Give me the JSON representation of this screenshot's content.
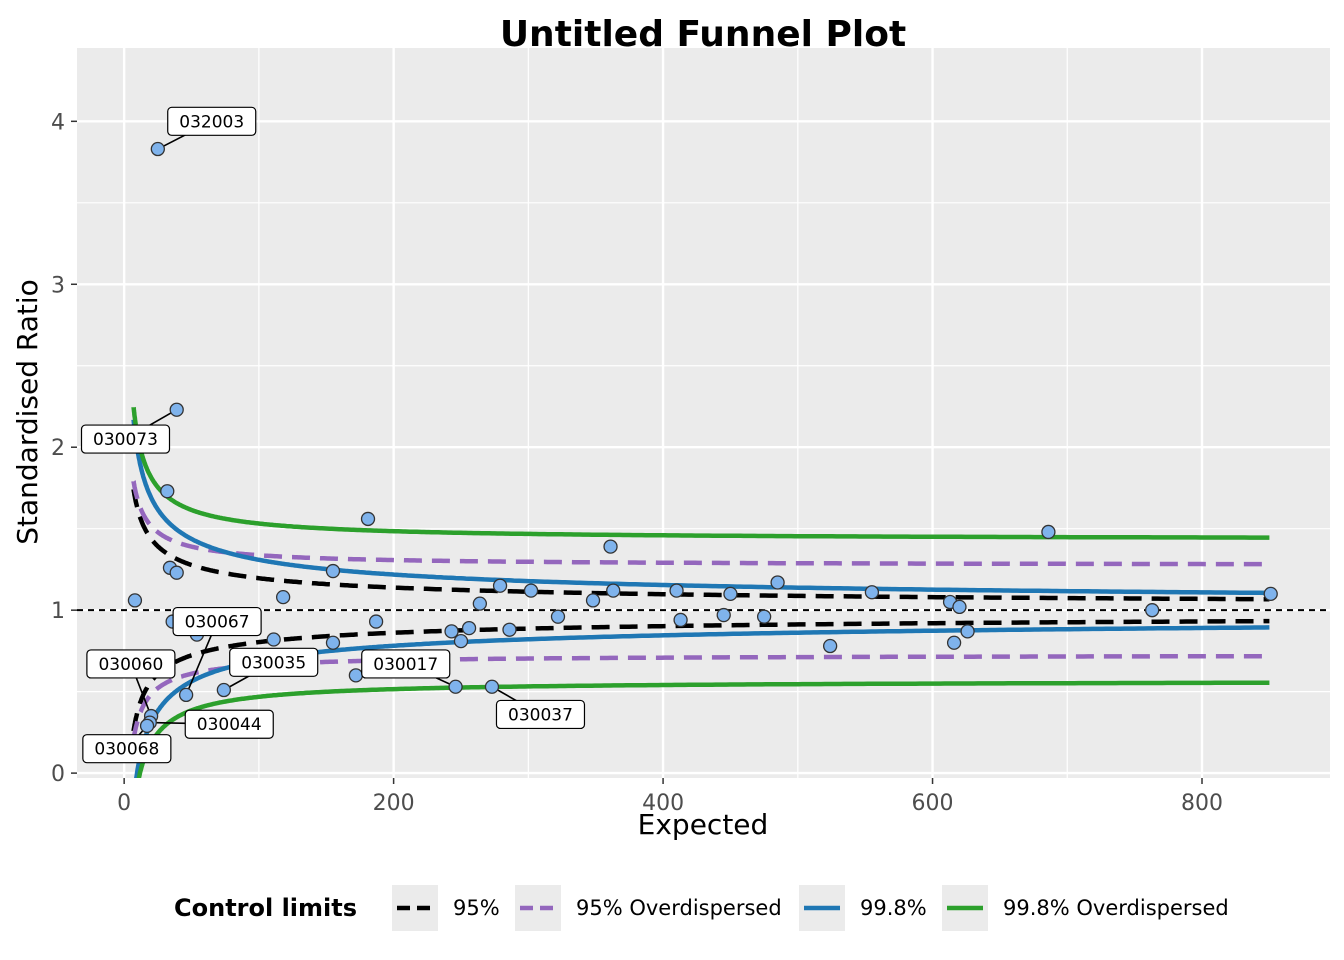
{
  "chart_data": {
    "type": "scatter",
    "title": "Untitled Funnel Plot",
    "xlabel": "Expected",
    "ylabel": "Standardised Ratio",
    "xlim": [
      -35,
      895
    ],
    "ylim": [
      -0.03,
      4.45
    ],
    "x_ticks": [
      0,
      200,
      400,
      600,
      800
    ],
    "y_ticks": [
      0,
      1,
      2,
      3,
      4
    ],
    "x_tick_labels": [
      "0",
      "200",
      "400",
      "600",
      "800"
    ],
    "y_tick_labels": [
      "0",
      "1",
      "2",
      "3",
      "4"
    ],
    "target_line": 1,
    "grid": true,
    "legend": {
      "title": "Control limits",
      "placement": "bottom",
      "entries": [
        {
          "label": "95%",
          "color": "#000000",
          "style": "dashed"
        },
        {
          "label": "95% Overdispersed",
          "color": "#9467bd",
          "style": "dashed"
        },
        {
          "label": "99.8%",
          "color": "#1f77b4",
          "style": "solid"
        },
        {
          "label": "99.8% Overdispersed",
          "color": "#2ca02c",
          "style": "solid"
        }
      ]
    },
    "limits_x_range": [
      7,
      850
    ],
    "limits": [
      {
        "name": "95%",
        "color": "#000000",
        "style": "dashed",
        "z": 1.96,
        "overdispersed": false
      },
      {
        "name": "95% Overdispersed",
        "color": "#9467bd",
        "style": "dashed",
        "z": 1.96,
        "overdispersed": true,
        "tau2": 0.0196
      },
      {
        "name": "99.8%",
        "color": "#1f77b4",
        "style": "solid",
        "z": 3.09,
        "overdispersed": false
      },
      {
        "name": "99.8% Overdispersed",
        "color": "#2ca02c",
        "style": "solid",
        "z": 3.09,
        "overdispersed": true,
        "tau2": 0.0196
      }
    ],
    "point_color": "#7fb3ec",
    "points": [
      {
        "x": 25,
        "y": 3.83,
        "label": "032003"
      },
      {
        "x": 39,
        "y": 2.23,
        "label": "030073"
      },
      {
        "x": 32,
        "y": 1.73
      },
      {
        "x": 34,
        "y": 1.26
      },
      {
        "x": 39,
        "y": 1.23
      },
      {
        "x": 8,
        "y": 1.06
      },
      {
        "x": 36,
        "y": 0.93
      },
      {
        "x": 54,
        "y": 0.85
      },
      {
        "x": 46,
        "y": 0.48,
        "label": "030067"
      },
      {
        "x": 74,
        "y": 0.51,
        "label": "030035"
      },
      {
        "x": 20,
        "y": 0.35,
        "label": "030060"
      },
      {
        "x": 19,
        "y": 0.31,
        "label": "030044"
      },
      {
        "x": 17,
        "y": 0.29,
        "label": "030068"
      },
      {
        "x": 118,
        "y": 1.08
      },
      {
        "x": 111,
        "y": 0.82
      },
      {
        "x": 155,
        "y": 1.24
      },
      {
        "x": 155,
        "y": 0.8
      },
      {
        "x": 172,
        "y": 0.6
      },
      {
        "x": 181,
        "y": 1.56
      },
      {
        "x": 187,
        "y": 0.93
      },
      {
        "x": 243,
        "y": 0.87
      },
      {
        "x": 246,
        "y": 0.53,
        "label": "030017"
      },
      {
        "x": 250,
        "y": 0.81
      },
      {
        "x": 256,
        "y": 0.89
      },
      {
        "x": 264,
        "y": 1.04
      },
      {
        "x": 273,
        "y": 0.53,
        "label": "030037"
      },
      {
        "x": 279,
        "y": 1.15
      },
      {
        "x": 286,
        "y": 0.88
      },
      {
        "x": 302,
        "y": 1.12
      },
      {
        "x": 322,
        "y": 0.96
      },
      {
        "x": 348,
        "y": 1.06
      },
      {
        "x": 361,
        "y": 1.39
      },
      {
        "x": 363,
        "y": 1.12
      },
      {
        "x": 410,
        "y": 1.12
      },
      {
        "x": 413,
        "y": 0.94
      },
      {
        "x": 445,
        "y": 0.97
      },
      {
        "x": 450,
        "y": 1.1
      },
      {
        "x": 475,
        "y": 0.96
      },
      {
        "x": 485,
        "y": 1.17
      },
      {
        "x": 524,
        "y": 0.78
      },
      {
        "x": 555,
        "y": 1.11
      },
      {
        "x": 613,
        "y": 1.05
      },
      {
        "x": 616,
        "y": 0.8
      },
      {
        "x": 620,
        "y": 1.02
      },
      {
        "x": 626,
        "y": 0.87
      },
      {
        "x": 686,
        "y": 1.48
      },
      {
        "x": 763,
        "y": 1.0
      },
      {
        "x": 851,
        "y": 1.1
      }
    ],
    "callouts": [
      {
        "text": "032003",
        "anchor": 0,
        "dx": 40,
        "dy": 0.17
      },
      {
        "text": "030073",
        "anchor": 1,
        "dx": -38,
        "dy": -0.18
      },
      {
        "text": "030067",
        "anchor": 8,
        "dx": 23,
        "dy": 0.45
      },
      {
        "text": "030035",
        "anchor": 9,
        "dx": 37,
        "dy": 0.17
      },
      {
        "text": "030060",
        "anchor": 10,
        "dx": -15,
        "dy": 0.32
      },
      {
        "text": "030044",
        "anchor": 11,
        "dx": 59,
        "dy": -0.01
      },
      {
        "text": "030068",
        "anchor": 12,
        "dx": -15,
        "dy": -0.14
      },
      {
        "text": "030017",
        "anchor": 21,
        "dx": -37,
        "dy": 0.14
      },
      {
        "text": "030037",
        "anchor": 25,
        "dx": 36,
        "dy": -0.17
      }
    ]
  }
}
